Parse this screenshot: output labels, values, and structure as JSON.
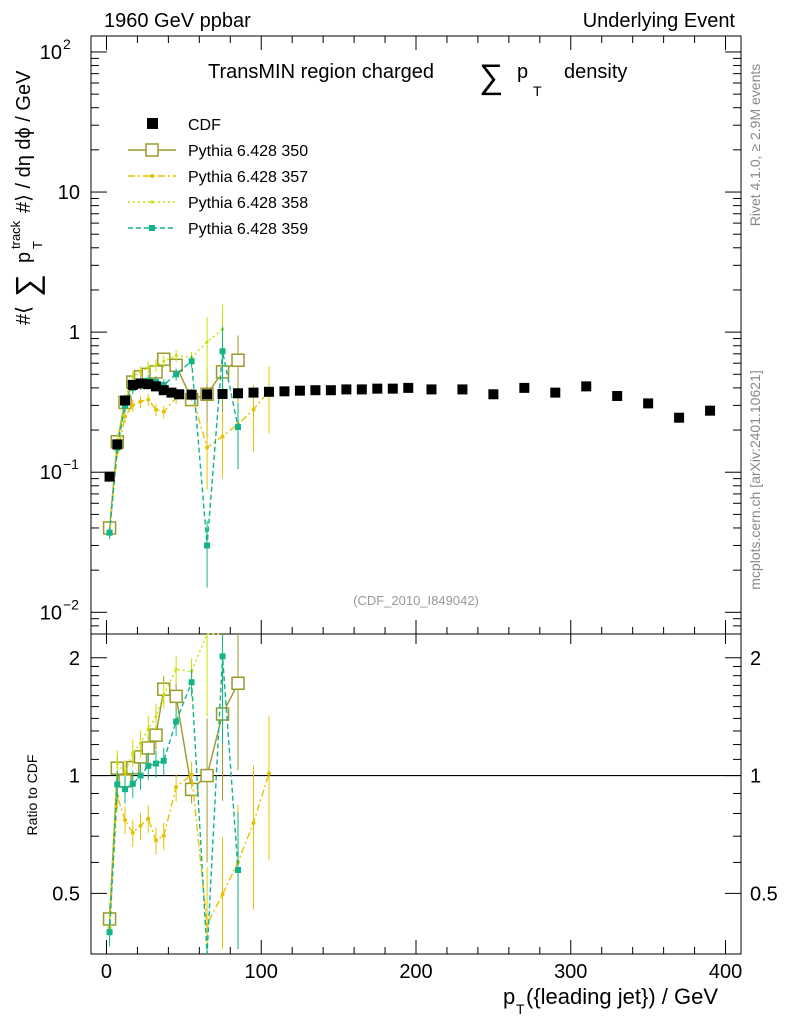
{
  "header": {
    "left": "1960 GeV ppbar",
    "right": "Underlying Event"
  },
  "side_labels": {
    "rivet": "Rivet 4.1.0, ≥ 2.9M events",
    "mcplots": "mcplots.cern.ch [arXiv:2401.10621]"
  },
  "chart_data": {
    "type": "scatter",
    "title": "TransMIN region charged ∑ pT density",
    "title_parts": {
      "pre": "TransMIN region charged",
      "sum": "∑",
      "p": "p",
      "sub": "T",
      "post": "density"
    },
    "analysis_id": "(CDF_2010_I849042)",
    "xlabel": "pT({leading jet}) / GeV",
    "xlabel_parts": {
      "p": "p",
      "sub": "T",
      "rest": "({leading jet}) / GeV"
    },
    "ylabel": "#⟨ ∑ pT track #⟩ / dη dϕ / GeV",
    "ylabel_parts": {
      "pre": "#⟨",
      "sum": "∑",
      "p": "p",
      "sup": "track",
      "sub": "T",
      "post": "#⟩ / dη dϕ / GeV"
    },
    "ratio_ylabel": "Ratio to CDF",
    "xlim": [
      -10,
      410
    ],
    "ylim": [
      0.007,
      130
    ],
    "ratio_ylim": [
      0.35,
      2.3
    ],
    "x_ticks": [
      "0",
      "100",
      "200",
      "300",
      "400"
    ],
    "y_ticks": [
      {
        "value": 100,
        "mant": "10",
        "exp": "2"
      },
      {
        "value": 10,
        "mant": "10",
        "exp": ""
      },
      {
        "value": 1,
        "mant": "1",
        "exp": ""
      },
      {
        "value": 0.1,
        "mant": "10",
        "exp": "−1"
      },
      {
        "value": 0.01,
        "mant": "10",
        "exp": "−2"
      }
    ],
    "ratio_ticks": [
      "0.5",
      "1",
      "2"
    ],
    "legend": [
      "CDF",
      "Pythia 6.428 350",
      "Pythia 6.428 357",
      "Pythia 6.428 358",
      "Pythia 6.428 359"
    ],
    "data_points": {
      "x": [
        2,
        7,
        12,
        17,
        22,
        27,
        32,
        37,
        42,
        47,
        55,
        65,
        75,
        85,
        95,
        105,
        115,
        125,
        135,
        145,
        155,
        165,
        175,
        185,
        195,
        210,
        230,
        250,
        270,
        290,
        310,
        330,
        350,
        370,
        390
      ],
      "y": [
        0.093,
        0.158,
        0.325,
        0.42,
        0.43,
        0.425,
        0.41,
        0.385,
        0.37,
        0.36,
        0.358,
        0.36,
        0.362,
        0.366,
        0.37,
        0.375,
        0.378,
        0.382,
        0.385,
        0.385,
        0.39,
        0.39,
        0.395,
        0.395,
        0.4,
        0.39,
        0.39,
        0.36,
        0.4,
        0.37,
        0.41,
        0.35,
        0.31,
        0.245,
        0.275
      ]
    },
    "series": [
      {
        "name": "Pythia 6.428 350",
        "color": "#9a9a2a",
        "marker": "open-square",
        "dash": "",
        "x": [
          2,
          7,
          12,
          17,
          22,
          27,
          32,
          37,
          45,
          55,
          65,
          75,
          85
        ],
        "y": [
          0.04,
          0.165,
          0.315,
          0.44,
          0.48,
          0.5,
          0.52,
          0.64,
          0.58,
          0.33,
          0.36,
          0.52,
          0.63
        ]
      },
      {
        "name": "Pythia 6.428 357",
        "color": "#e5c300",
        "marker": "star",
        "dash": "7,3,2,3",
        "x": [
          2,
          7,
          12,
          17,
          22,
          27,
          32,
          37,
          45,
          55,
          65,
          75,
          85,
          95,
          105
        ],
        "y": [
          0.038,
          0.14,
          0.25,
          0.3,
          0.32,
          0.33,
          0.28,
          0.27,
          0.34,
          0.36,
          0.15,
          0.18,
          0.22,
          0.28,
          0.38
        ]
      },
      {
        "name": "Pythia 6.428 358",
        "color": "#c8e000",
        "marker": "dot",
        "dash": "2,3",
        "x": [
          2,
          7,
          12,
          17,
          22,
          27,
          32,
          37,
          45,
          55,
          65,
          75
        ],
        "y": [
          0.038,
          0.17,
          0.33,
          0.48,
          0.52,
          0.56,
          0.58,
          0.62,
          0.68,
          0.66,
          0.85,
          1.05
        ]
      },
      {
        "name": "Pythia 6.428 359",
        "color": "#12b48a",
        "marker": "filled-square",
        "dash": "5,3",
        "x": [
          2,
          7,
          12,
          17,
          22,
          27,
          32,
          37,
          45,
          55,
          65,
          75,
          85
        ],
        "y": [
          0.037,
          0.15,
          0.3,
          0.4,
          0.43,
          0.45,
          0.44,
          0.42,
          0.5,
          0.62,
          0.03,
          0.73,
          0.21
        ]
      }
    ]
  }
}
